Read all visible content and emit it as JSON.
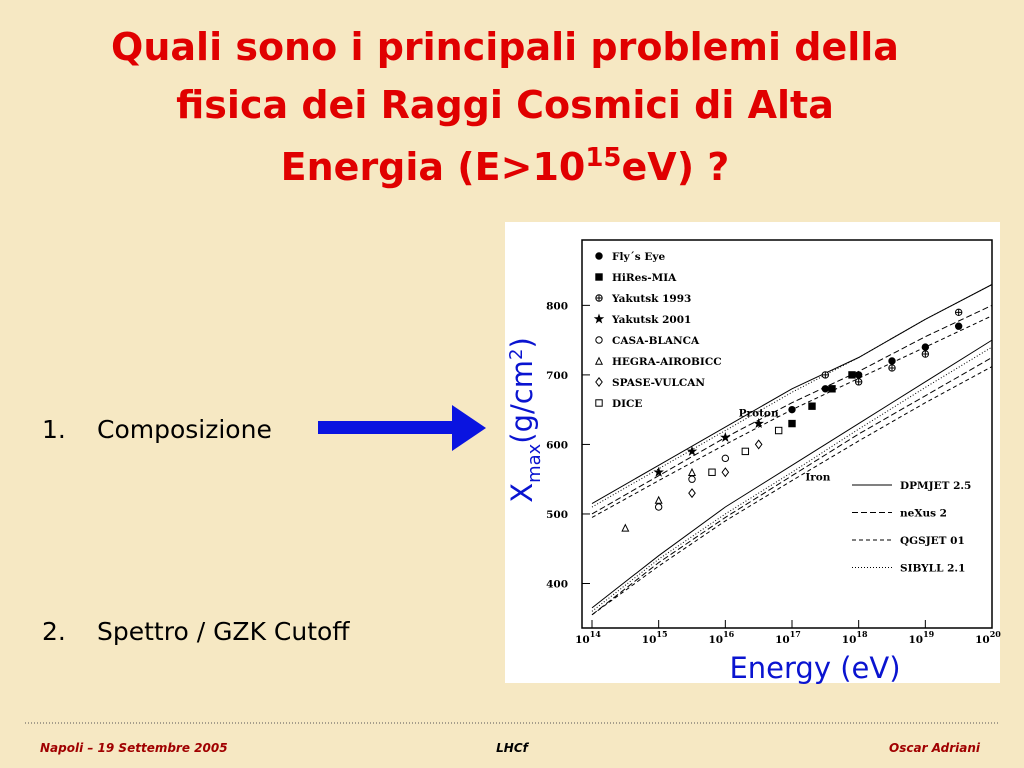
{
  "slide": {
    "title": {
      "line1": "Quali sono i principali problemi della",
      "line2": "fisica dei Raggi Cosmici di Alta",
      "line3a": "Energia (E>10",
      "line3sup": "15",
      "line3b": "eV) ?"
    },
    "items": [
      {
        "num": "1.",
        "text": "Composizione"
      },
      {
        "num": "2.",
        "text": "Spettro / GZK Cutoff"
      }
    ],
    "footer": {
      "left": "Napoli – 19 Settembre 2005",
      "center": "LHCf",
      "right": "Oscar Adriani"
    }
  },
  "chart_data": {
    "type": "scatter",
    "ylabel": {
      "base": "X",
      "sub": "max",
      "unit": "(g/cm",
      "sup": "2",
      "close": ")"
    },
    "xlabel": "Energy (eV)",
    "x_tick_base": "10",
    "xlim": [
      14,
      20
    ],
    "xticks": [
      14,
      15,
      16,
      17,
      18,
      19,
      20
    ],
    "ylim": [
      336,
      894
    ],
    "yticks": [
      400,
      500,
      600,
      700,
      800
    ],
    "annotations": [
      {
        "text": "Proton",
        "x": 16.2,
        "y": 640
      },
      {
        "text": "Iron",
        "x": 17.2,
        "y": 548
      }
    ],
    "series": [
      {
        "name": "Fly´s Eye",
        "marker": "dot",
        "x": [
          17.0,
          17.5,
          18.0,
          18.5,
          19.0,
          19.5
        ],
        "values": [
          650,
          680,
          700,
          720,
          740,
          770
        ]
      },
      {
        "name": "HiRes-MIA",
        "marker": "square",
        "x": [
          17.0,
          17.3,
          17.6,
          17.9
        ],
        "values": [
          630,
          655,
          680,
          700
        ]
      },
      {
        "name": "Yakutsk 1993",
        "marker": "cross-circle",
        "x": [
          17.5,
          18.0,
          18.5,
          19.0,
          19.5
        ],
        "values": [
          700,
          690,
          710,
          730,
          790
        ]
      },
      {
        "name": "Yakutsk 2001",
        "marker": "star",
        "x": [
          15.0,
          15.5,
          16.0,
          16.5
        ],
        "values": [
          560,
          590,
          610,
          630
        ]
      },
      {
        "name": "CASA-BLANCA",
        "marker": "circle",
        "x": [
          15.0,
          15.5,
          16.0
        ],
        "values": [
          510,
          550,
          580
        ]
      },
      {
        "name": "HEGRA-AIROBICC",
        "marker": "triangle",
        "x": [
          14.5,
          15.0,
          15.5
        ],
        "values": [
          480,
          520,
          560
        ]
      },
      {
        "name": "SPASE-VULCAN",
        "marker": "diamond",
        "x": [
          15.5,
          16.0,
          16.5
        ],
        "values": [
          530,
          560,
          600
        ]
      },
      {
        "name": "DICE",
        "marker": "open-square",
        "x": [
          15.8,
          16.3,
          16.8
        ],
        "values": [
          560,
          590,
          620
        ]
      }
    ],
    "model_x": [
      14,
      15,
      16,
      17,
      18,
      19,
      20
    ],
    "models": [
      {
        "name": "DPMJET 2.5",
        "dash": "none",
        "proton": [
          515,
          570,
          625,
          680,
          725,
          780,
          830
        ],
        "iron": [
          365,
          440,
          510,
          570,
          630,
          690,
          750
        ]
      },
      {
        "name": "neXus 2",
        "dash": "6 3",
        "proton": [
          500,
          555,
          610,
          660,
          705,
          755,
          800
        ],
        "iron": [
          355,
          430,
          495,
          555,
          615,
          670,
          725
        ]
      },
      {
        "name": "QGSJET 01",
        "dash": "4 3",
        "proton": [
          495,
          548,
          600,
          650,
          695,
          740,
          785
        ],
        "iron": [
          355,
          425,
          490,
          548,
          605,
          660,
          712
        ]
      },
      {
        "name": "SIBYLL 2.1",
        "dash": "1 2",
        "proton": [
          510,
          565,
          620,
          675,
          725,
          780,
          830
        ],
        "iron": [
          360,
          435,
          500,
          560,
          622,
          682,
          740
        ]
      }
    ]
  }
}
